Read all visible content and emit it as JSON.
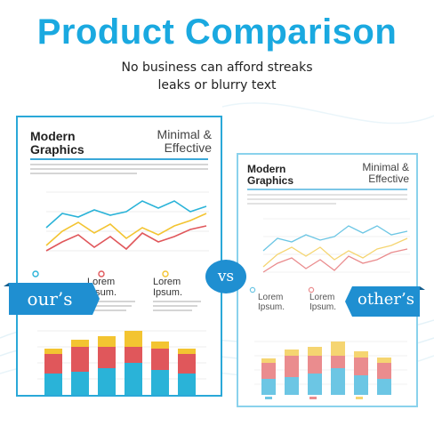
{
  "header": {
    "title": "Product Comparison",
    "subtitle_line1": "No business can afford streaks",
    "subtitle_line2": "leaks or blurry text"
  },
  "card": {
    "heading_left_line1": "Modern",
    "heading_left_line2": "Graphics",
    "heading_right_line1": "Minimal &",
    "heading_right_line2": "Effective",
    "lorem_word1": "Lorem",
    "lorem_word2": "Ipsum."
  },
  "labels": {
    "ours": "our’s",
    "others": "other’s",
    "vs": "vs"
  },
  "colors": {
    "accent": "#1aa9e0",
    "ribbon": "#1f8fd1",
    "series_blue": "#2ab3d8",
    "series_red": "#e0575b",
    "series_yellow": "#f3c431"
  },
  "icons": [
    "wave-background-icon",
    "vs-badge-icon",
    "ribbon-icon"
  ]
}
